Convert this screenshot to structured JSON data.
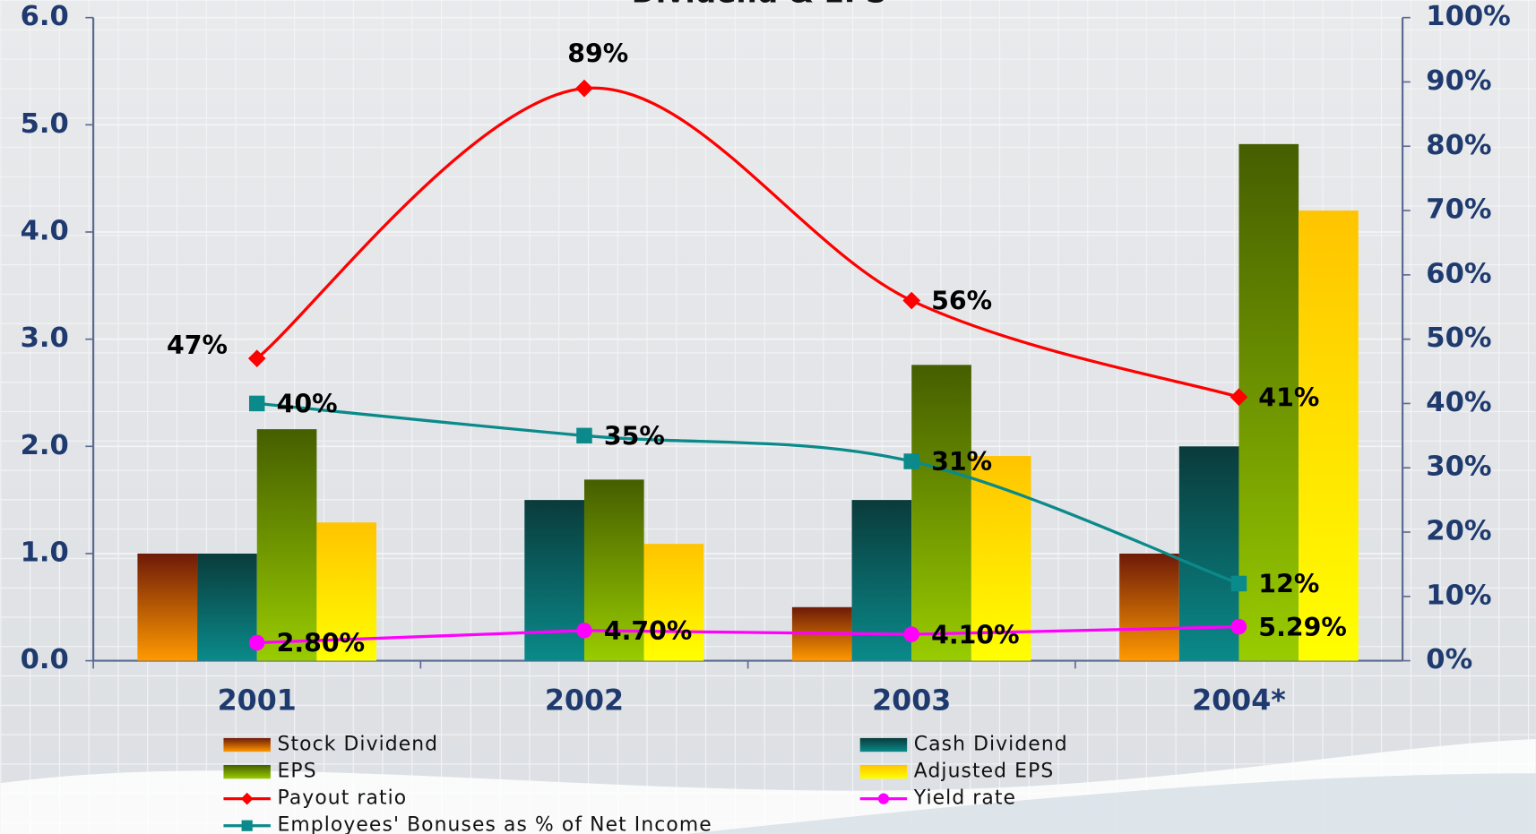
{
  "chart_data": {
    "type": "bar",
    "title": "Dividend & EPS",
    "categories": [
      "2001",
      "2002",
      "2003",
      "2004*"
    ],
    "ylim": [
      0,
      6
    ],
    "yticks": [
      {
        "value": 0,
        "label": "0.0"
      },
      {
        "value": 1,
        "label": "1.0"
      },
      {
        "value": 2,
        "label": "2.0"
      },
      {
        "value": 3,
        "label": "3.0"
      },
      {
        "value": 4,
        "label": "4.0"
      },
      {
        "value": 5,
        "label": "5.0"
      },
      {
        "value": 6,
        "label": "6.0"
      }
    ],
    "y2lim": [
      0,
      100
    ],
    "y2ticks": [
      {
        "value": 0,
        "label": "0%"
      },
      {
        "value": 10,
        "label": "10%"
      },
      {
        "value": 20,
        "label": "20%"
      },
      {
        "value": 30,
        "label": "30%"
      },
      {
        "value": 40,
        "label": "40%"
      },
      {
        "value": 50,
        "label": "50%"
      },
      {
        "value": 60,
        "label": "60%"
      },
      {
        "value": 70,
        "label": "70%"
      },
      {
        "value": 80,
        "label": "80%"
      },
      {
        "value": 90,
        "label": "90%"
      },
      {
        "value": 100,
        "label": "100%"
      }
    ],
    "grid": true,
    "series": [
      {
        "name": "Stock Dividend",
        "color": "#ff9900",
        "gradient_top": "#6e1a08",
        "values": [
          1.0,
          0,
          0.5,
          1.0
        ]
      },
      {
        "name": "Cash Dividend",
        "color": "#0a8a8a",
        "gradient_top": "#0a3b3b",
        "values": [
          1.0,
          1.5,
          1.5,
          2.0
        ]
      },
      {
        "name": "EPS",
        "color": "#99cc00",
        "gradient_top": "#455e00",
        "values": [
          2.16,
          1.69,
          2.76,
          4.82
        ]
      },
      {
        "name": "Adjusted EPS",
        "color": "#ffff00",
        "gradient_top": "#ffc400",
        "values": [
          1.29,
          1.09,
          1.91,
          4.2
        ]
      },
      {
        "name": "Payout ratio",
        "type": "line",
        "axis": "y2",
        "color": "#ff0000",
        "marker": "diamond",
        "smooth": true,
        "values": [
          47,
          89,
          56,
          41
        ],
        "value_labels": [
          "47%",
          "89%",
          "56%",
          "41%"
        ]
      },
      {
        "name": "Yield rate",
        "type": "line",
        "axis": "y2",
        "color": "#ff00ff",
        "marker": "circle",
        "smooth": false,
        "values": [
          2.8,
          4.7,
          4.1,
          5.29
        ],
        "value_labels": [
          "2.80%",
          "4.70%",
          "4.10%",
          "5.29%"
        ]
      },
      {
        "name": "Employees' Bonuses as % of Net Income",
        "type": "line",
        "axis": "y2",
        "color": "#0a8a8a",
        "marker": "square",
        "smooth": true,
        "values": [
          40,
          35,
          31,
          12
        ],
        "value_labels": [
          "40%",
          "35%",
          "31%",
          "12%"
        ]
      }
    ]
  }
}
